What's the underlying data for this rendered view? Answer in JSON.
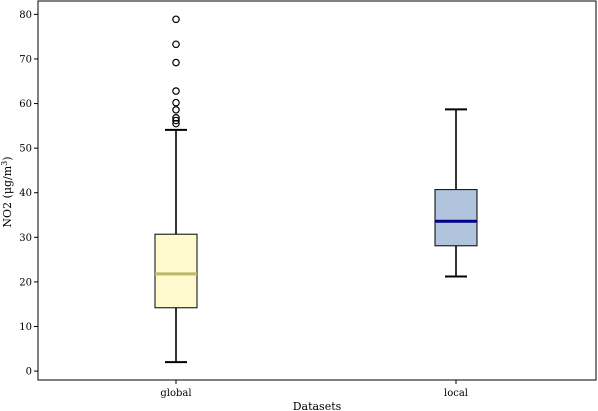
{
  "chart_data": {
    "type": "box",
    "xlabel": "Datasets",
    "ylabel_main": "NO2 (μg/m",
    "ylabel_sup": "3",
    "ylabel_close": ")",
    "ylim": [
      -2,
      83
    ],
    "yticks": [
      0,
      10,
      20,
      30,
      40,
      50,
      60,
      70,
      80
    ],
    "ytick_labels": [
      "0",
      "10",
      "20",
      "30",
      "40",
      "50",
      "60",
      "70",
      "80"
    ],
    "grid": false,
    "categories": [
      "global",
      "local"
    ],
    "boxes": [
      {
        "name": "global",
        "whisker_low": 2,
        "q1": 14.2,
        "median": 21.8,
        "q3": 30.7,
        "whisker_high": 54.1,
        "outliers": [
          55.5,
          56.2,
          56.8,
          58.6,
          60.2,
          62.8,
          69.2,
          73.3,
          78.9
        ],
        "box_color": "#fffacd",
        "median_color": "#bdb76b"
      },
      {
        "name": "local",
        "whisker_low": 21.2,
        "q1": 28.1,
        "median": 33.6,
        "q3": 40.7,
        "whisker_high": 58.7,
        "outliers": [],
        "box_color": "#b0c4de",
        "median_color": "#00008b"
      }
    ]
  }
}
